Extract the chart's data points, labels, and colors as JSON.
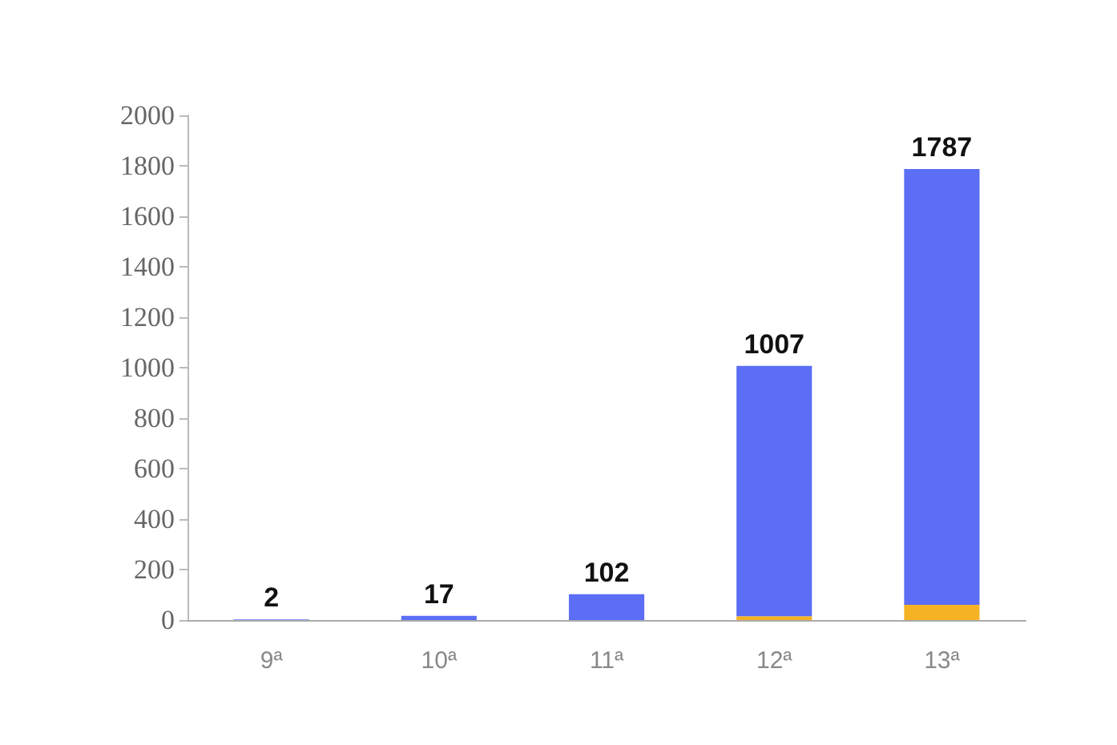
{
  "chart_data": {
    "type": "bar",
    "stacked": true,
    "categories": [
      "9ª",
      "10ª",
      "11ª",
      "12ª",
      "13ª"
    ],
    "series": [
      {
        "color": "#f5b324",
        "values": [
          0,
          0,
          0,
          15,
          60
        ]
      },
      {
        "color": "#5b6ef5",
        "values": [
          2,
          17,
          102,
          992,
          1727
        ]
      }
    ],
    "totals": [
      "2",
      "17",
      "102",
      "1007",
      "1787"
    ],
    "ylim": [
      0,
      2000
    ],
    "yticks": [
      0,
      200,
      400,
      600,
      800,
      1000,
      1200,
      1400,
      1600,
      1800,
      2000
    ],
    "grid": false
  }
}
